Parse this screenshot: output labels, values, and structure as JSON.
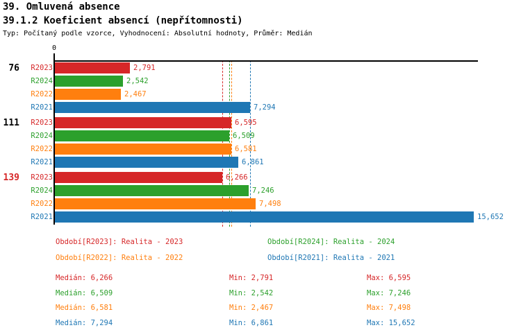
{
  "header": {
    "title1": "39. Omluvená absence",
    "title2": "39.1.2 Koeficient absencí (nepřítomnosti)",
    "subtitle": "Typ: Počítaný podle vzorce, Vyhodnocení: Absolutní hodnoty, Průměr: Medián"
  },
  "labels": {
    "median": "Medián",
    "min": "Min",
    "max": "Max"
  },
  "chart_data": {
    "type": "bar",
    "orientation": "horizontal",
    "title": "39.1.2 Koeficient absencí (nepřítomnosti)",
    "axis_zero_label": "0",
    "xlim": [
      0,
      15652
    ],
    "grid": false,
    "legend_position": "bottom",
    "categories": [
      {
        "label": "76",
        "color": "#000000"
      },
      {
        "label": "111",
        "color": "#000000"
      },
      {
        "label": "139",
        "color": "#d62728"
      }
    ],
    "bar_order_in_group": [
      "R2023",
      "R2024",
      "R2022",
      "R2021"
    ],
    "series": [
      {
        "name": "R2023",
        "legend": "Období[R2023]: Realita - 2023",
        "color": "#d62728",
        "values": [
          2791,
          6595,
          6266
        ],
        "median": 6266,
        "min": 2791,
        "max": 6595
      },
      {
        "name": "R2024",
        "legend": "Období[R2024]: Realita - 2024",
        "color": "#2ca02c",
        "values": [
          2542,
          6509,
          7246
        ],
        "median": 6509,
        "min": 2542,
        "max": 7246
      },
      {
        "name": "R2022",
        "legend": "Období[R2022]: Realita - 2022",
        "color": "#ff7f0e",
        "values": [
          2467,
          6581,
          7498
        ],
        "median": 6581,
        "min": 2467,
        "max": 7498
      },
      {
        "name": "R2021",
        "legend": "Období[R2021]: Realita - 2021",
        "color": "#1f77b4",
        "values": [
          7294,
          6861,
          15652
        ],
        "median": 7294,
        "min": 6861,
        "max": 15652
      }
    ],
    "value_labels": {
      "R2023": [
        "2,791",
        "6,595",
        "6,266"
      ],
      "R2024": [
        "2,542",
        "6,509",
        "7,246"
      ],
      "R2022": [
        "2,467",
        "6,581",
        "7,498"
      ],
      "R2021": [
        "7,294",
        "6,861",
        "15,652"
      ]
    },
    "median_lines": [
      {
        "series": "R2023",
        "value": 6266,
        "color": "#d62728"
      },
      {
        "series": "R2024",
        "value": 6509,
        "color": "#2ca02c"
      },
      {
        "series": "R2022",
        "value": 6581,
        "color": "#ff7f0e"
      },
      {
        "series": "R2021",
        "value": 7294,
        "color": "#1f77b4"
      }
    ]
  },
  "stats": [
    {
      "median": "6,266",
      "min": "2,791",
      "max": "6,595",
      "color": "#d62728"
    },
    {
      "median": "6,509",
      "min": "2,542",
      "max": "7,246",
      "color": "#2ca02c"
    },
    {
      "median": "6,581",
      "min": "2,467",
      "max": "7,498",
      "color": "#ff7f0e"
    },
    {
      "median": "7,294",
      "min": "6,861",
      "max": "15,652",
      "color": "#1f77b4"
    }
  ]
}
